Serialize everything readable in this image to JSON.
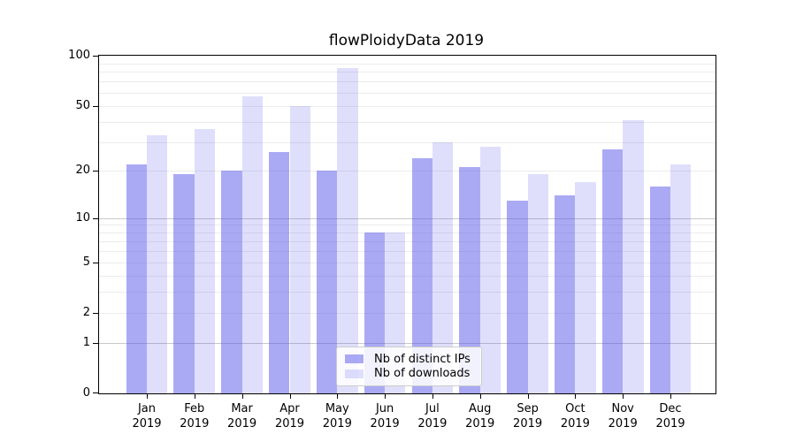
{
  "chart_data": {
    "type": "bar",
    "title": "flowPloidyData 2019",
    "categories": [
      "Jan",
      "Feb",
      "Mar",
      "Apr",
      "May",
      "Jun",
      "Jul",
      "Aug",
      "Sep",
      "Oct",
      "Nov",
      "Dec"
    ],
    "x_year_sublabel": "2019",
    "series": [
      {
        "name": "Nb of distinct IPs",
        "color": "rgba(85,85,233,0.5)",
        "values": [
          22,
          19,
          20,
          26,
          20,
          8,
          24,
          21,
          13,
          14,
          27,
          16
        ]
      },
      {
        "name": "Nb of downloads",
        "color": "rgba(85,85,233,0.19)",
        "values": [
          33,
          36,
          57,
          50,
          84,
          8,
          30,
          28,
          19,
          17,
          41,
          22
        ]
      }
    ],
    "xlabel": "",
    "ylabel": "",
    "yscale": "log1p",
    "ylim": [
      0,
      100
    ],
    "y_tick_labels": [
      100,
      50,
      20,
      10,
      5,
      2,
      1,
      0
    ],
    "y_major_gridlines": [
      1,
      10
    ],
    "y_minor_gridlines": [
      2,
      3,
      4,
      5,
      6,
      7,
      8,
      9,
      20,
      30,
      40,
      50,
      60,
      70,
      80,
      90
    ],
    "grid": true,
    "legend_position": "lower center"
  }
}
